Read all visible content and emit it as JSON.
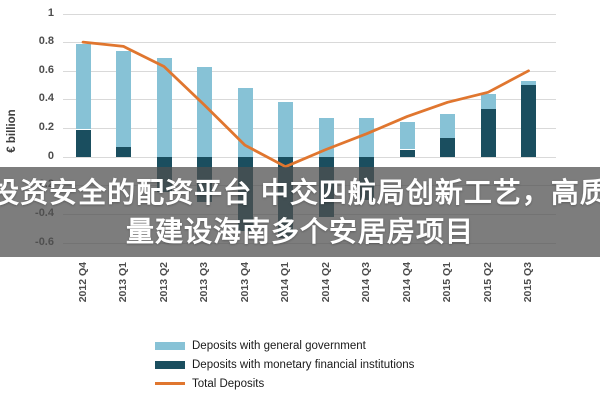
{
  "overlay": {
    "line1": "投资安全的配资平台 中交四航局创新工艺，高质",
    "line2": "量建设海南多个安居房项目"
  },
  "chart_data": {
    "type": "bar",
    "subtype": "stacked-bars-with-line-overlay",
    "categories": [
      "2012 Q4",
      "2013 Q1",
      "2013 Q2",
      "2013 Q3",
      "2013 Q4",
      "2014 Q1",
      "2014 Q2",
      "2014 Q3",
      "2014 Q4",
      "2015 Q1",
      "2015 Q2",
      "2015 Q3"
    ],
    "series": [
      {
        "name": "Deposits with general government",
        "type": "bar",
        "color": "#87c2d6",
        "values": [
          0.6,
          0.67,
          0.69,
          0.63,
          0.48,
          0.38,
          0.27,
          0.27,
          0.19,
          0.17,
          0.11,
          0.03
        ]
      },
      {
        "name": "Deposits with monetary financial institutions",
        "type": "bar",
        "color": "#1a4e5f",
        "values": [
          0.19,
          0.07,
          -0.25,
          -0.32,
          -0.52,
          -0.57,
          -0.42,
          -0.3,
          0.05,
          0.13,
          0.33,
          0.5
        ]
      },
      {
        "name": "Total Deposits",
        "type": "line",
        "color": "#e0762f",
        "values": [
          0.8,
          0.77,
          0.63,
          0.36,
          0.08,
          -0.07,
          0.05,
          0.16,
          0.28,
          0.38,
          0.45,
          0.6
        ]
      }
    ],
    "title": "",
    "xlabel": "",
    "ylabel": "€ billion",
    "ylim": [
      -0.6,
      1.0
    ],
    "ytick_step": 0.2,
    "yticks": [
      "-0.6",
      "-0.4",
      "-0.2",
      "0",
      "0.2",
      "0.4",
      "0.6",
      "0.8",
      "1"
    ],
    "grid": true,
    "legend_position": "bottom",
    "grid_color": "#d9d9d9"
  }
}
